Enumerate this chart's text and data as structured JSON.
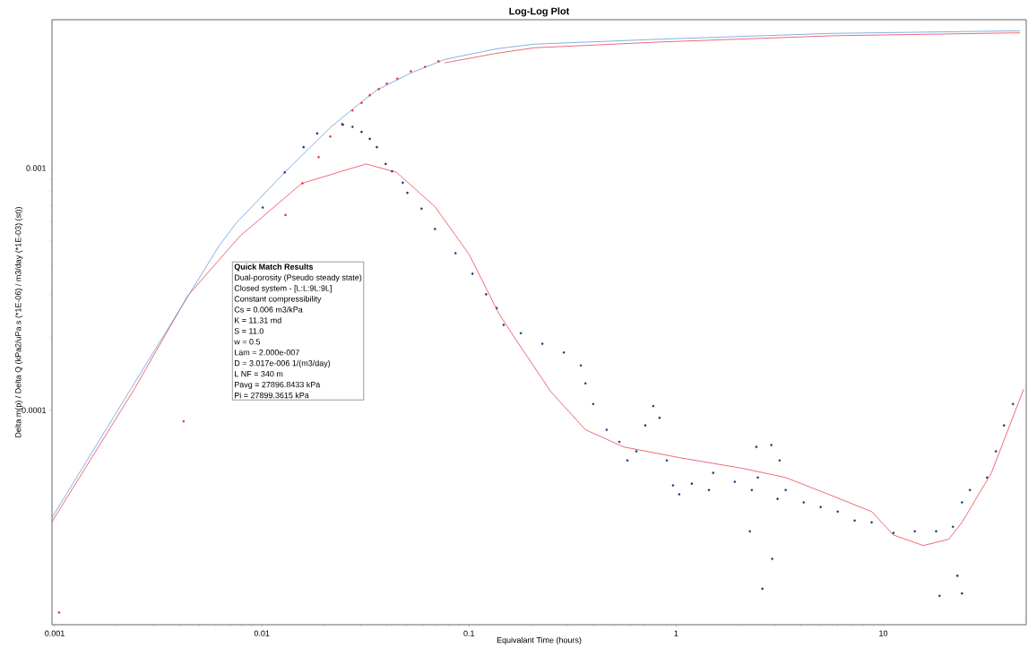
{
  "chart_data": {
    "type": "line",
    "title": "Log-Log Plot",
    "xlabel": "Equivalant Time (hours)",
    "ylabel": "Delta m(p) / Delta Q (kPa2/uPa s (*1E-06) / m3/day (*1E-03) (st))",
    "log": "xy",
    "xlim": [
      0.00097,
      49
    ],
    "ylim": [
      1.3e-05,
      0.0041
    ],
    "xticks": [
      0.001,
      0.01,
      0.1,
      1,
      10
    ],
    "yticks": [
      0.0001,
      0.001
    ],
    "annotations": [
      "Quick Match Results",
      "Dual-porosity (Pseudo steady state)",
      "Closed system - [L:L:9L:9L]",
      "Constant compressibility",
      "Cs = 0.006 m3/kPa",
      "K = 11.31 md",
      "S = 11.0",
      "w = 0.5",
      "Lam = 2.000e-007",
      "D = 3.017e-006 1/(m3/day)",
      "L NF = 340 m",
      "Pavg = 27896.8433 kPa",
      "Pi = 27899.3615 kPa"
    ],
    "series": [
      {
        "color": "#e8283c",
        "x": [
          0.0764,
          0.136,
          0.207,
          0.857,
          5.68,
          45.8
        ],
        "values": [
          0.00272,
          0.00298,
          0.00314,
          0.00332,
          0.00352,
          0.00362
        ]
      },
      {
        "color": "#e8283c",
        "x": [
          0.00097,
          0.00242,
          0.0044,
          0.00783,
          0.0156,
          0.0319,
          0.0447,
          0.0685,
          0.1,
          0.14,
          0.169,
          0.247,
          0.365,
          0.559,
          1.035,
          2.12,
          3.38,
          5.45,
          8.8,
          11.2,
          15.6,
          20.7,
          24.0,
          33.3,
          47.6
        ],
        "values": [
          3.46e-05,
          0.000122,
          0.000298,
          0.000523,
          0.000865,
          0.00104,
          0.00096,
          0.000693,
          0.000441,
          0.000249,
          0.000195,
          0.00012,
          8.3e-05,
          7.05e-05,
          6.37e-05,
          5.74e-05,
          5.27e-05,
          4.49e-05,
          3.81e-05,
          3.05e-05,
          2.76e-05,
          2.93e-05,
          3.44e-05,
          5.51e-05,
          0.000122
        ]
      },
      {
        "color": "#4a8fd8",
        "x": [
          0.00097,
          0.00242,
          0.00624,
          0.00754,
          0.0129,
          0.0214,
          0.0274,
          0.0359,
          0.0524,
          0.0764,
          0.136,
          0.207,
          0.857,
          5.68,
          45.8
        ],
        "values": [
          3.6e-05,
          0.000129,
          0.00048,
          0.000594,
          0.00096,
          0.00147,
          0.00175,
          0.0021,
          0.00247,
          0.00281,
          0.00311,
          0.00325,
          0.00341,
          0.0036,
          0.00369
        ]
      },
      {
        "type": "scatter",
        "marker": "circle",
        "color": "#e03030",
        "x": [
          0.00105,
          0.00419,
          0.013,
          0.0157,
          0.0188,
          0.0214,
          0.0244,
          0.0274,
          0.0303,
          0.0332,
          0.0367,
          0.0401,
          0.0451,
          0.0524,
          0.0614,
          0.0713
        ],
        "values": [
          1.46e-05,
          9e-05,
          0.00064,
          0.000865,
          0.00111,
          0.00135,
          0.00152,
          0.00173,
          0.00186,
          0.002,
          0.00212,
          0.00223,
          0.00234,
          0.00251,
          0.00262,
          0.00276
        ]
      },
      {
        "type": "scatter",
        "marker": "circle",
        "color": "#27307a",
        "x": [
          0.0101,
          0.0129,
          0.0159,
          0.0185,
          0.0246,
          0.0274,
          0.0303,
          0.0332,
          0.0359,
          0.0396,
          0.0425,
          0.0479,
          0.0504,
          0.059,
          0.0685,
          0.0861,
          0.104,
          0.121,
          0.136,
          0.147,
          0.178,
          0.226,
          0.287,
          0.347,
          0.365,
          0.398,
          0.462,
          0.532,
          0.582,
          0.643,
          0.71,
          0.776,
          0.832,
          0.902,
          0.966,
          1.035,
          1.19,
          1.44,
          1.51,
          1.92,
          2.32,
          2.48,
          3.09,
          3.38,
          4.13,
          4.99,
          6.03,
          7.28,
          8.79,
          11.2,
          14.2,
          18.0,
          21.7,
          24.0,
          26.2,
          31.7,
          35.0,
          38.3,
          42.3,
          2.44,
          2.88,
          3.16,
          2.27,
          2.91,
          2.61,
          22.8,
          24.0,
          18.7
        ],
        "values": [
          0.000687,
          0.00096,
          0.00122,
          0.00139,
          0.00151,
          0.00148,
          0.00141,
          0.00132,
          0.00122,
          0.00104,
          0.00097,
          0.00087,
          0.00079,
          0.00068,
          0.00056,
          0.000445,
          0.000366,
          0.000301,
          0.000264,
          0.000225,
          0.000208,
          0.000188,
          0.000173,
          0.000153,
          0.000129,
          0.000106,
          8.3e-05,
          7.4e-05,
          6.2e-05,
          6.76e-05,
          8.65e-05,
          0.000104,
          9.3e-05,
          6.2e-05,
          4.89e-05,
          4.49e-05,
          4.97e-05,
          4.68e-05,
          5.51e-05,
          5.06e-05,
          4.68e-05,
          5.27e-05,
          4.3e-05,
          4.68e-05,
          4.16e-05,
          3.98e-05,
          3.81e-05,
          3.5e-05,
          3.44e-05,
          3.11e-05,
          3.16e-05,
          3.16e-05,
          3.3e-05,
          4.16e-05,
          4.68e-05,
          5.27e-05,
          6.76e-05,
          8.65e-05,
          0.000106,
          7.05e-05,
          7.18e-05,
          6.2e-05,
          3.16e-05,
          2.43e-05,
          1.83e-05,
          2.07e-05,
          1.75e-05,
          1.71e-05
        ]
      }
    ]
  }
}
